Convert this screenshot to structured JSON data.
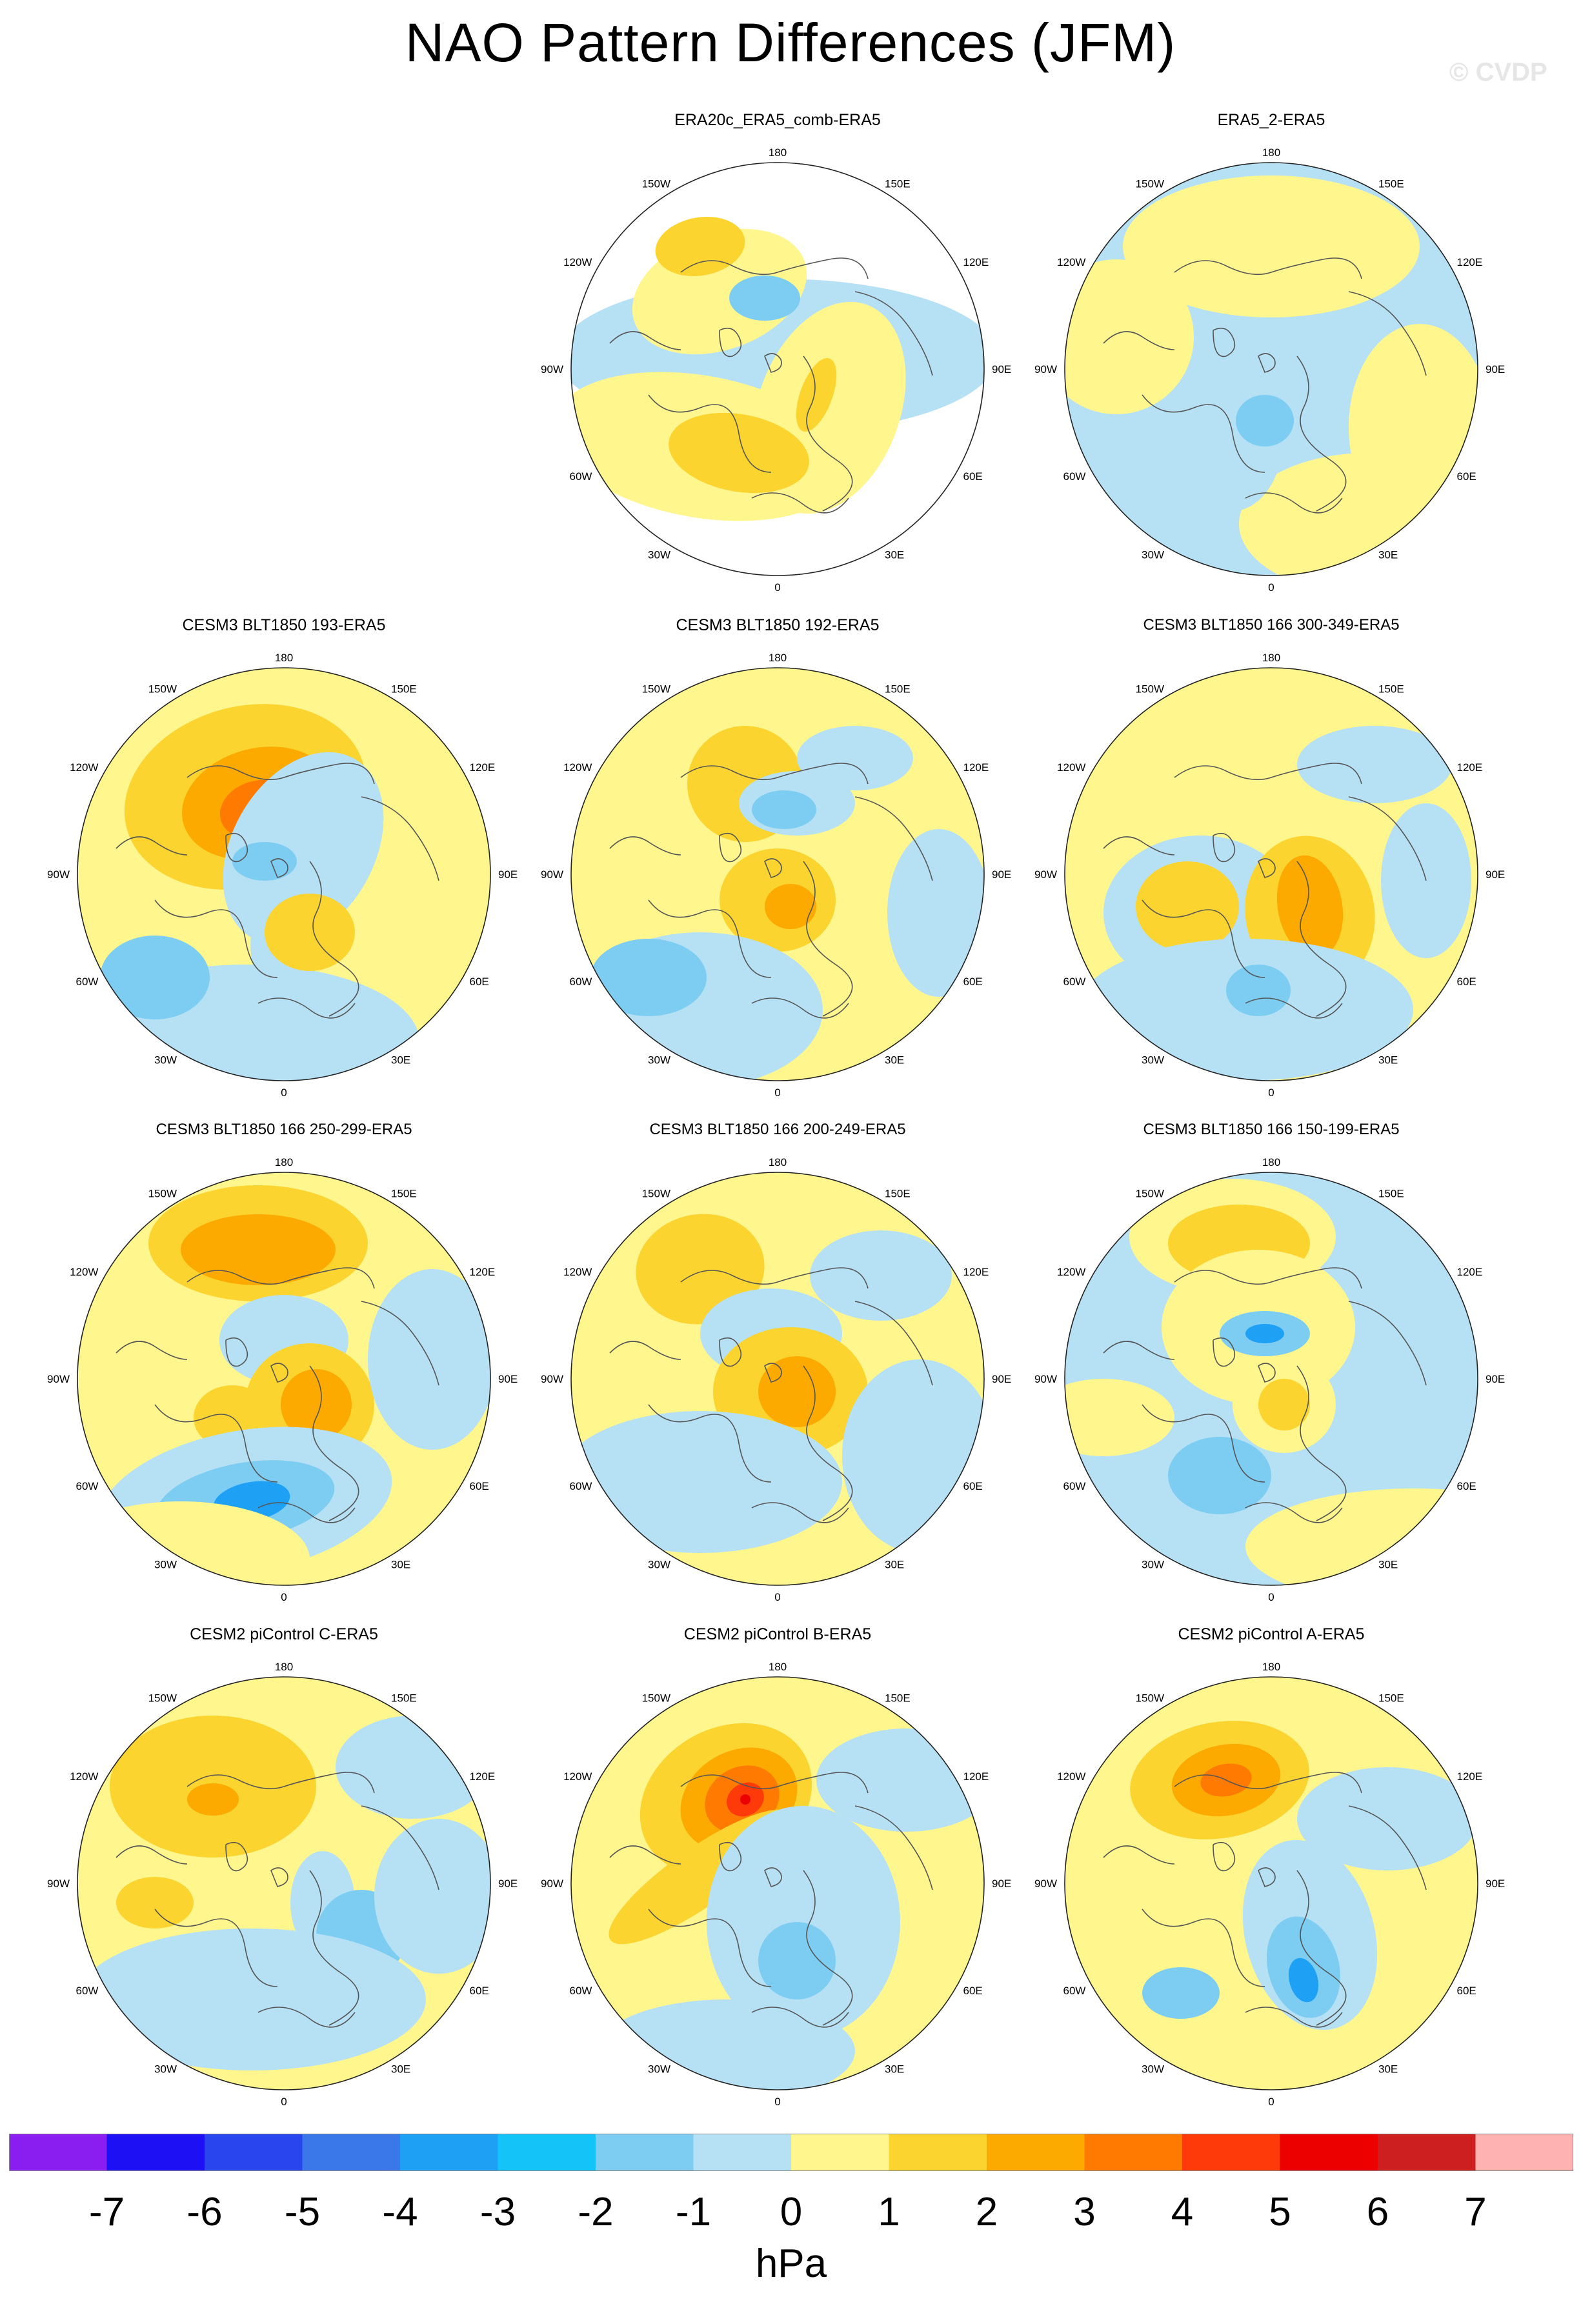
{
  "title": "NAO Pattern Differences (JFM)",
  "watermark": "© CVDP",
  "chart_data": {
    "type": "heatmap",
    "description_variable": "NAO pattern sea-level pressure difference",
    "units": "hPa",
    "projection": "polar stereographic, North Pole centred",
    "longitude_labels": [
      "180",
      "150E",
      "120E",
      "90E",
      "60E",
      "30E",
      "0",
      "30W",
      "60W",
      "90W",
      "120W",
      "150W"
    ],
    "colorbar": {
      "levels": [
        -7,
        -6,
        -5,
        -4,
        -3,
        -2,
        -1,
        0,
        1,
        2,
        3,
        4,
        5,
        6,
        7
      ],
      "tick_labels": [
        "-7",
        "-6",
        "-5",
        "-4",
        "-3",
        "-2",
        "-1",
        "0",
        "1",
        "2",
        "3",
        "4",
        "5",
        "6",
        "7"
      ],
      "colors": [
        "#8a1ef0",
        "#1e10f5",
        "#2845ee",
        "#3a78ea",
        "#1ea0f5",
        "#14c3f8",
        "#7dcdf3",
        "#b6e0f3",
        "#fff68e",
        "#fbd42f",
        "#fdaa00",
        "#fe7a00",
        "#ff3a0a",
        "#ec0000",
        "#cd1f1f",
        "#ffb2b2"
      ],
      "units_label": "hPa"
    },
    "panels": [
      {
        "title": "ERA20c_ERA5_comb-ERA5",
        "max_positive": 2,
        "min_negative": -2
      },
      {
        "title": "ERA5_2-ERA5",
        "max_positive": 1,
        "min_negative": -2
      },
      {
        "title": "CESM3 BLT1850 193-ERA5",
        "max_positive": 4,
        "min_negative": -2
      },
      {
        "title": "CESM3 BLT1850 192-ERA5",
        "max_positive": 3,
        "min_negative": -2
      },
      {
        "title": "CESM3 BLT1850 166 300-349-ERA5",
        "max_positive": 3,
        "min_negative": -2
      },
      {
        "title": "CESM3 BLT1850 166 250-299-ERA5",
        "max_positive": 3,
        "min_negative": -3
      },
      {
        "title": "CESM3 BLT1850 166 200-249-ERA5",
        "max_positive": 3,
        "min_negative": -2
      },
      {
        "title": "CESM3 BLT1850 166 150-199-ERA5",
        "max_positive": 2,
        "min_negative": -3
      },
      {
        "title": "CESM2 piControl C-ERA5",
        "max_positive": 3,
        "min_negative": -2
      },
      {
        "title": "CESM2 piControl B-ERA5",
        "max_positive": 6,
        "min_negative": -2
      },
      {
        "title": "CESM2 piControl A-ERA5",
        "max_positive": 4,
        "min_negative": -3
      }
    ]
  }
}
